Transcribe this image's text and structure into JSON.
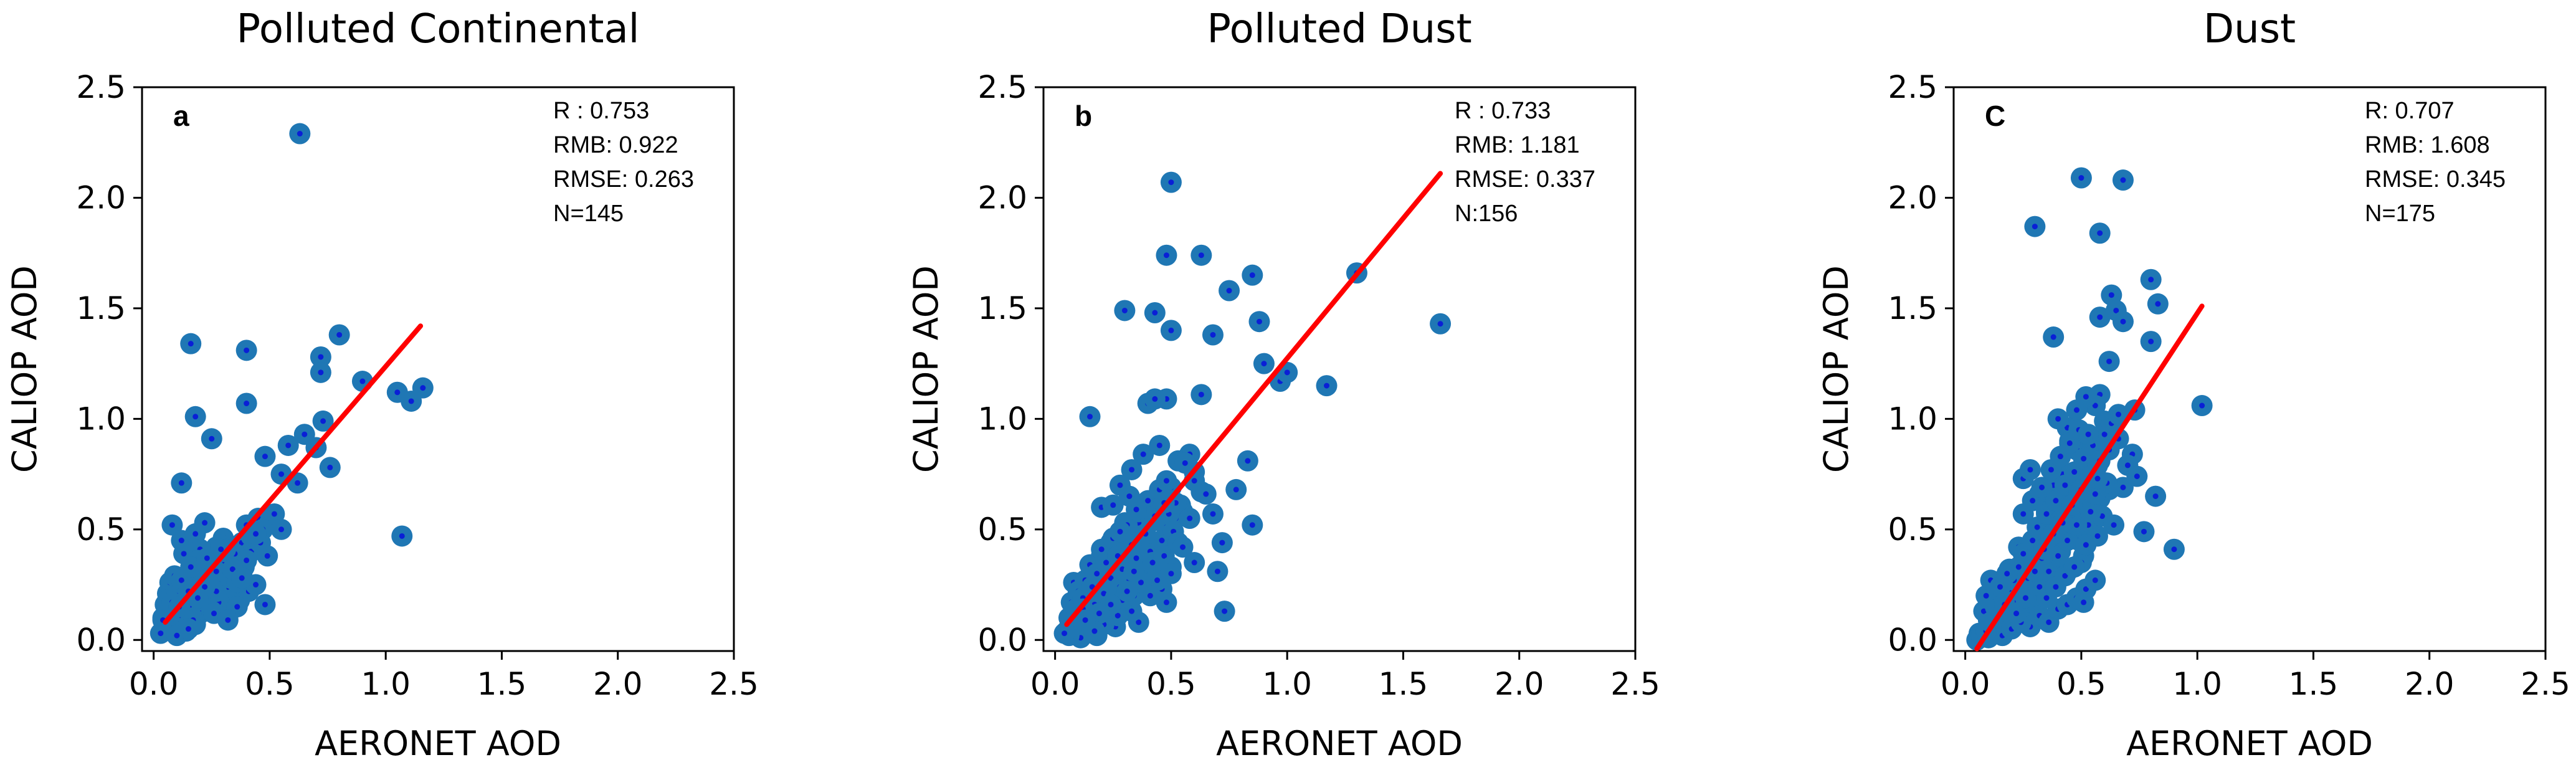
{
  "chart_data": [
    {
      "type": "scatter",
      "title": "Polluted Continental",
      "xlabel": "AERONET AOD",
      "ylabel": "CALIOP AOD",
      "xlim": [
        -0.05,
        2.5
      ],
      "ylim": [
        -0.05,
        2.5
      ],
      "xticks": [
        "0.0",
        "0.5",
        "1.0",
        "1.5",
        "2.0",
        "2.5"
      ],
      "yticks": [
        "0.0",
        "0.5",
        "1.0",
        "1.5",
        "2.0",
        "2.5"
      ],
      "panel_label": "a",
      "stats": [
        "R : 0.753",
        "RMB: 0.922",
        "RMSE: 0.263",
        "N=145"
      ],
      "marker_color": "#1f77b4",
      "center_color": "#0a1fd6",
      "fit_color": "#ff0000",
      "fit_line": {
        "x": [
          0.05,
          1.15
        ],
        "y": [
          0.08,
          1.42
        ]
      },
      "x": [
        0.63,
        0.16,
        0.4,
        0.8,
        0.72,
        0.9,
        1.16,
        1.05,
        1.11,
        0.72,
        0.4,
        0.18,
        0.25,
        0.12,
        0.48,
        0.58,
        0.65,
        0.7,
        0.76,
        0.73,
        0.55,
        0.62,
        1.07,
        0.48,
        0.08,
        0.12,
        0.18,
        0.22,
        0.27,
        0.3,
        0.33,
        0.36,
        0.38,
        0.4,
        0.42,
        0.45,
        0.5,
        0.52,
        0.55,
        0.2,
        0.23,
        0.26,
        0.29,
        0.31,
        0.34,
        0.37,
        0.41,
        0.44,
        0.05,
        0.06,
        0.07,
        0.08,
        0.09,
        0.1,
        0.11,
        0.12,
        0.13,
        0.14,
        0.15,
        0.16,
        0.17,
        0.18,
        0.19,
        0.2,
        0.21,
        0.22,
        0.23,
        0.24,
        0.25,
        0.03,
        0.04,
        0.05,
        0.06,
        0.07,
        0.08,
        0.09,
        0.1,
        0.11,
        0.12,
        0.13,
        0.14,
        0.15,
        0.16,
        0.17,
        0.18,
        0.19,
        0.2,
        0.21,
        0.22,
        0.23,
        0.24,
        0.26,
        0.28,
        0.3,
        0.32,
        0.35,
        0.38,
        0.42,
        0.28,
        0.32,
        0.36,
        0.18,
        0.14,
        0.1,
        0.24,
        0.3,
        0.06,
        0.09,
        0.13,
        0.17,
        0.21,
        0.27,
        0.33,
        0.39,
        0.15,
        0.19,
        0.25,
        0.29,
        0.35,
        0.43,
        0.47,
        0.1,
        0.14,
        0.2,
        0.26,
        0.32,
        0.04,
        0.08,
        0.12,
        0.16,
        0.22,
        0.27,
        0.31,
        0.36,
        0.4,
        0.46,
        0.11,
        0.15,
        0.19,
        0.23,
        0.29,
        0.34,
        0.38,
        0.44,
        0.49
      ],
      "y": [
        2.29,
        1.34,
        1.31,
        1.38,
        1.28,
        1.17,
        1.14,
        1.12,
        1.08,
        1.21,
        1.07,
        1.01,
        0.91,
        0.71,
        0.83,
        0.88,
        0.93,
        0.87,
        0.78,
        0.99,
        0.75,
        0.71,
        0.47,
        0.16,
        0.52,
        0.45,
        0.48,
        0.53,
        0.42,
        0.38,
        0.36,
        0.31,
        0.44,
        0.52,
        0.47,
        0.55,
        0.53,
        0.57,
        0.5,
        0.41,
        0.33,
        0.27,
        0.29,
        0.24,
        0.2,
        0.18,
        0.22,
        0.25,
        0.06,
        0.12,
        0.18,
        0.23,
        0.09,
        0.26,
        0.14,
        0.21,
        0.1,
        0.17,
        0.28,
        0.24,
        0.35,
        0.12,
        0.3,
        0.16,
        0.22,
        0.19,
        0.34,
        0.27,
        0.14,
        0.03,
        0.1,
        0.16,
        0.21,
        0.26,
        0.08,
        0.13,
        0.19,
        0.05,
        0.11,
        0.24,
        0.17,
        0.07,
        0.29,
        0.15,
        0.21,
        0.11,
        0.26,
        0.19,
        0.13,
        0.23,
        0.31,
        0.27,
        0.2,
        0.34,
        0.24,
        0.37,
        0.3,
        0.4,
        0.17,
        0.11,
        0.15,
        0.07,
        0.04,
        0.02,
        0.32,
        0.46,
        0.18,
        0.29,
        0.39,
        0.09,
        0.14,
        0.22,
        0.28,
        0.33,
        0.05,
        0.36,
        0.13,
        0.43,
        0.39,
        0.46,
        0.5,
        0.2,
        0.25,
        0.18,
        0.12,
        0.09,
        0.09,
        0.17,
        0.27,
        0.33,
        0.24,
        0.31,
        0.41,
        0.26,
        0.36,
        0.44,
        0.15,
        0.22,
        0.19,
        0.37,
        0.41,
        0.32,
        0.28,
        0.48,
        0.38
      ]
    },
    {
      "type": "scatter",
      "title": "Polluted Dust",
      "xlabel": "AERONET AOD",
      "ylabel": "CALIOP AOD",
      "xlim": [
        -0.05,
        2.5
      ],
      "ylim": [
        -0.05,
        2.5
      ],
      "xticks": [
        "0.0",
        "0.5",
        "1.0",
        "1.5",
        "2.0",
        "2.5"
      ],
      "yticks": [
        "0.0",
        "0.5",
        "1.0",
        "1.5",
        "2.0",
        "2.5"
      ],
      "panel_label": "b",
      "stats": [
        "R : 0.733",
        "RMB: 1.181",
        "RMSE: 0.337",
        "N:156"
      ],
      "marker_color": "#1f77b4",
      "center_color": "#0a1fd6",
      "fit_color": "#ff0000",
      "fit_line": {
        "x": [
          0.05,
          1.66
        ],
        "y": [
          0.07,
          2.11
        ]
      },
      "x": [
        0.5,
        0.48,
        0.63,
        0.85,
        0.43,
        0.3,
        0.5,
        0.75,
        0.88,
        0.68,
        0.9,
        0.97,
        1.0,
        1.17,
        1.3,
        1.66,
        0.63,
        0.83,
        0.48,
        0.4,
        0.43,
        0.15,
        0.58,
        0.63,
        0.68,
        0.72,
        0.78,
        0.85,
        0.6,
        0.53,
        0.45,
        0.38,
        0.33,
        0.28,
        0.2,
        0.25,
        0.3,
        0.35,
        0.4,
        0.45,
        0.5,
        0.55,
        0.6,
        0.65,
        0.7,
        0.73,
        0.08,
        0.1,
        0.12,
        0.14,
        0.16,
        0.18,
        0.2,
        0.22,
        0.24,
        0.26,
        0.28,
        0.3,
        0.32,
        0.34,
        0.36,
        0.38,
        0.4,
        0.42,
        0.44,
        0.46,
        0.48,
        0.5,
        0.52,
        0.54,
        0.05,
        0.06,
        0.07,
        0.08,
        0.09,
        0.1,
        0.11,
        0.12,
        0.13,
        0.14,
        0.15,
        0.16,
        0.17,
        0.18,
        0.19,
        0.2,
        0.21,
        0.22,
        0.23,
        0.24,
        0.25,
        0.26,
        0.27,
        0.28,
        0.29,
        0.3,
        0.31,
        0.32,
        0.33,
        0.34,
        0.35,
        0.36,
        0.37,
        0.38,
        0.39,
        0.4,
        0.41,
        0.42,
        0.43,
        0.44,
        0.45,
        0.46,
        0.47,
        0.48,
        0.49,
        0.5,
        0.51,
        0.52,
        0.53,
        0.56,
        0.58,
        0.46,
        0.48,
        0.44,
        0.5,
        0.55,
        0.6,
        0.36,
        0.33,
        0.29,
        0.26,
        0.22,
        0.18,
        0.15,
        0.12,
        0.09,
        0.41,
        0.37,
        0.34,
        0.31,
        0.27,
        0.24,
        0.21,
        0.19,
        0.17,
        0.13,
        0.11,
        0.07,
        0.06,
        0.04,
        0.39,
        0.43,
        0.47,
        0.35,
        0.32,
        0.28
      ],
      "y": [
        2.07,
        1.74,
        1.74,
        1.65,
        1.48,
        1.49,
        1.4,
        1.58,
        1.44,
        1.38,
        1.25,
        1.17,
        1.21,
        1.15,
        1.66,
        1.43,
        1.11,
        0.81,
        1.09,
        1.07,
        1.09,
        1.01,
        0.84,
        0.67,
        0.57,
        0.44,
        0.68,
        0.52,
        0.76,
        0.81,
        0.88,
        0.84,
        0.77,
        0.7,
        0.6,
        0.61,
        0.53,
        0.49,
        0.57,
        0.64,
        0.69,
        0.58,
        0.72,
        0.66,
        0.31,
        0.13,
        0.26,
        0.18,
        0.11,
        0.05,
        0.21,
        0.29,
        0.38,
        0.16,
        0.44,
        0.33,
        0.25,
        0.4,
        0.47,
        0.36,
        0.53,
        0.29,
        0.45,
        0.58,
        0.39,
        0.66,
        0.51,
        0.48,
        0.55,
        0.61,
        0.04,
        0.1,
        0.17,
        0.08,
        0.14,
        0.22,
        0.07,
        0.19,
        0.27,
        0.12,
        0.34,
        0.24,
        0.16,
        0.3,
        0.09,
        0.41,
        0.21,
        0.35,
        0.13,
        0.28,
        0.46,
        0.19,
        0.38,
        0.24,
        0.32,
        0.15,
        0.52,
        0.27,
        0.43,
        0.2,
        0.37,
        0.58,
        0.31,
        0.47,
        0.25,
        0.63,
        0.4,
        0.35,
        0.54,
        0.29,
        0.68,
        0.45,
        0.38,
        0.72,
        0.57,
        0.33,
        0.49,
        0.62,
        0.44,
        0.8,
        0.55,
        0.23,
        0.17,
        0.27,
        0.3,
        0.42,
        0.35,
        0.08,
        0.13,
        0.18,
        0.06,
        0.1,
        0.02,
        0.06,
        0.14,
        0.03,
        0.2,
        0.26,
        0.31,
        0.22,
        0.11,
        0.16,
        0.07,
        0.12,
        0.04,
        0.09,
        0.01,
        0.05,
        0.02,
        0.03,
        0.48,
        0.56,
        0.62,
        0.59,
        0.65,
        0.49
      ]
    },
    {
      "type": "scatter",
      "title": "Dust",
      "xlabel": "AERONET AOD",
      "ylabel": "CALIOP AOD",
      "xlim": [
        -0.05,
        2.5
      ],
      "ylim": [
        -0.05,
        2.5
      ],
      "xticks": [
        "0.0",
        "0.5",
        "1.0",
        "1.5",
        "2.0",
        "2.5"
      ],
      "yticks": [
        "0.0",
        "0.5",
        "1.0",
        "1.5",
        "2.0",
        "2.5"
      ],
      "panel_label": "C",
      "stats": [
        "R: 0.707",
        "RMB: 1.608",
        "RMSE: 0.345",
        "N=175"
      ],
      "marker_color": "#1f77b4",
      "center_color": "#0a1fd6",
      "fit_color": "#ff0000",
      "fit_line": {
        "x": [
          0.05,
          1.02
        ],
        "y": [
          -0.04,
          1.51
        ]
      },
      "x": [
        0.5,
        0.68,
        0.3,
        0.58,
        0.8,
        0.63,
        0.83,
        0.58,
        0.65,
        0.68,
        0.8,
        0.38,
        1.02,
        0.73,
        0.62,
        0.58,
        0.56,
        0.52,
        0.48,
        0.44,
        0.4,
        0.82,
        0.9,
        0.77,
        0.72,
        0.68,
        0.66,
        0.6,
        0.55,
        0.25,
        0.28,
        0.32,
        0.35,
        0.38,
        0.42,
        0.45,
        0.48,
        0.52,
        0.55,
        0.58,
        0.62,
        0.46,
        0.5,
        0.53,
        0.4,
        0.43,
        0.36,
        0.33,
        0.29,
        0.26,
        0.22,
        0.2,
        0.18,
        0.16,
        0.14,
        0.12,
        0.1,
        0.08,
        0.06,
        0.09,
        0.11,
        0.13,
        0.15,
        0.17,
        0.19,
        0.21,
        0.23,
        0.24,
        0.27,
        0.3,
        0.31,
        0.34,
        0.37,
        0.39,
        0.41,
        0.44,
        0.47,
        0.49,
        0.51,
        0.54,
        0.57,
        0.59,
        0.61,
        0.64,
        0.1,
        0.12,
        0.14,
        0.16,
        0.18,
        0.2,
        0.22,
        0.24,
        0.26,
        0.28,
        0.3,
        0.32,
        0.34,
        0.36,
        0.38,
        0.4,
        0.42,
        0.44,
        0.46,
        0.48,
        0.5,
        0.52,
        0.54,
        0.56,
        0.05,
        0.07,
        0.09,
        0.11,
        0.13,
        0.15,
        0.17,
        0.19,
        0.21,
        0.23,
        0.25,
        0.27,
        0.29,
        0.31,
        0.33,
        0.35,
        0.37,
        0.39,
        0.41,
        0.43,
        0.45,
        0.47,
        0.49,
        0.51,
        0.53,
        0.55,
        0.57,
        0.6,
        0.63,
        0.66,
        0.7,
        0.74,
        0.28,
        0.32,
        0.36,
        0.4,
        0.44,
        0.48,
        0.52,
        0.56,
        0.2,
        0.24,
        0.35,
        0.39,
        0.43,
        0.47,
        0.51,
        0.34,
        0.38,
        0.42,
        0.46,
        0.5,
        0.54,
        0.58,
        0.62,
        0.15,
        0.18,
        0.22,
        0.26,
        0.3,
        0.25,
        0.29,
        0.33,
        0.37,
        0.41,
        0.45,
        0.49,
        0.53,
        0.57
      ],
      "y": [
        2.09,
        2.08,
        1.87,
        1.84,
        1.63,
        1.56,
        1.52,
        1.46,
        1.49,
        1.44,
        1.35,
        1.37,
        1.06,
        1.04,
        1.26,
        1.11,
        1.06,
        1.1,
        1.04,
        0.96,
        1.0,
        0.65,
        0.41,
        0.49,
        0.84,
        0.69,
        0.91,
        0.99,
        0.85,
        0.73,
        0.77,
        0.66,
        0.58,
        0.7,
        0.75,
        0.9,
        0.86,
        0.82,
        0.77,
        0.64,
        0.68,
        0.55,
        0.6,
        0.52,
        0.62,
        0.48,
        0.44,
        0.5,
        0.39,
        0.34,
        0.3,
        0.24,
        0.19,
        0.12,
        0.06,
        0.16,
        0.09,
        0.13,
        0.03,
        0.2,
        0.27,
        0.15,
        0.22,
        0.09,
        0.32,
        0.18,
        0.42,
        0.26,
        0.36,
        0.21,
        0.46,
        0.34,
        0.27,
        0.53,
        0.4,
        0.31,
        0.59,
        0.45,
        0.38,
        0.63,
        0.47,
        0.56,
        0.71,
        0.52,
        0.01,
        0.05,
        0.14,
        0.02,
        0.21,
        0.07,
        0.29,
        0.12,
        0.36,
        0.17,
        0.42,
        0.24,
        0.49,
        0.31,
        0.55,
        0.38,
        0.61,
        0.45,
        0.68,
        0.52,
        0.35,
        0.43,
        0.58,
        0.66,
        0.0,
        0.02,
        0.04,
        0.08,
        0.1,
        0.13,
        0.16,
        0.23,
        0.27,
        0.33,
        0.39,
        0.28,
        0.45,
        0.51,
        0.37,
        0.57,
        0.47,
        0.63,
        0.54,
        0.7,
        0.6,
        0.76,
        0.67,
        0.82,
        0.72,
        0.88,
        0.79,
        0.93,
        0.98,
        1.02,
        0.79,
        0.74,
        0.06,
        0.11,
        0.08,
        0.14,
        0.16,
        0.19,
        0.23,
        0.27,
        0.05,
        0.08,
        0.19,
        0.24,
        0.29,
        0.33,
        0.17,
        0.41,
        0.48,
        0.53,
        0.61,
        0.68,
        0.74,
        0.81,
        0.86,
        0.24,
        0.3,
        0.12,
        0.19,
        0.31,
        0.57,
        0.63,
        0.69,
        0.77,
        0.83,
        0.89,
        0.95,
        0.93,
        0.73
      ]
    }
  ]
}
